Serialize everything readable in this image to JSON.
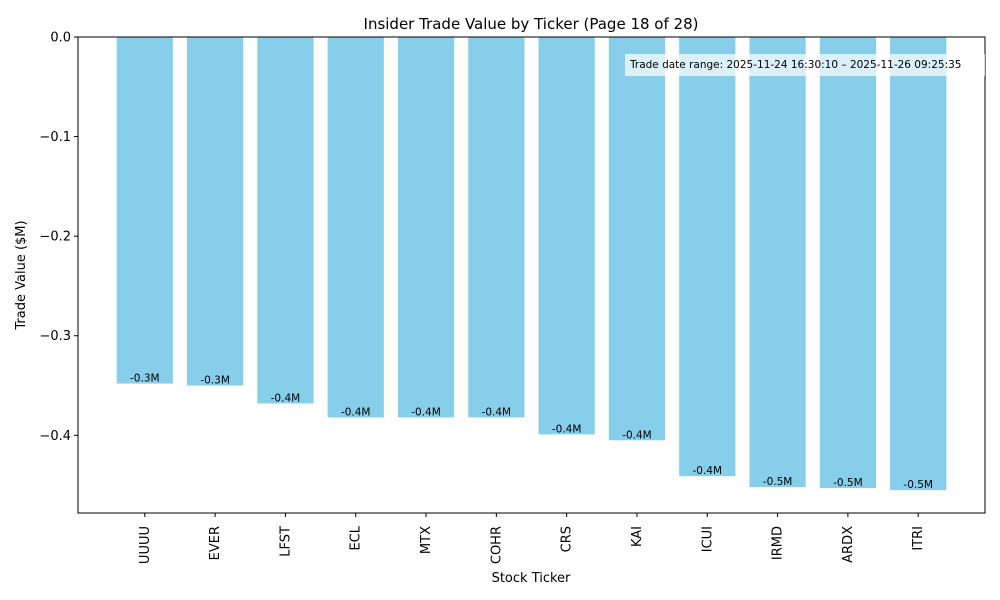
{
  "chart_data": {
    "type": "bar",
    "title": "Insider Trade Value by Ticker (Page 18 of 28)",
    "xlabel": "Stock Ticker",
    "ylabel": "Trade Value ($M)",
    "categories": [
      "UUUU",
      "EVER",
      "LFST",
      "ECL",
      "MTX",
      "COHR",
      "CRS",
      "KAI",
      "ICUI",
      "IRMD",
      "ARDX",
      "ITRI"
    ],
    "values": [
      -0.348,
      -0.35,
      -0.368,
      -0.382,
      -0.382,
      -0.382,
      -0.399,
      -0.405,
      -0.441,
      -0.452,
      -0.453,
      -0.455
    ],
    "data_labels": [
      "-0.3M",
      "-0.3M",
      "-0.4M",
      "-0.4M",
      "-0.4M",
      "-0.4M",
      "-0.4M",
      "-0.4M",
      "-0.4M",
      "-0.5M",
      "-0.5M",
      "-0.5M"
    ],
    "ylim": [
      -0.478,
      0.0
    ],
    "yticks": [
      0.0,
      -0.1,
      -0.2,
      -0.3,
      -0.4
    ],
    "ytick_labels": [
      "0.0",
      "−0.1",
      "−0.2",
      "−0.3",
      "−0.4"
    ],
    "bar_color": "#87CEEB",
    "grid": false,
    "annotation": "Trade date range: 2025-11-24 16:30:10 – 2025-11-26 09:25:35",
    "annotation_placement": "top-right"
  }
}
